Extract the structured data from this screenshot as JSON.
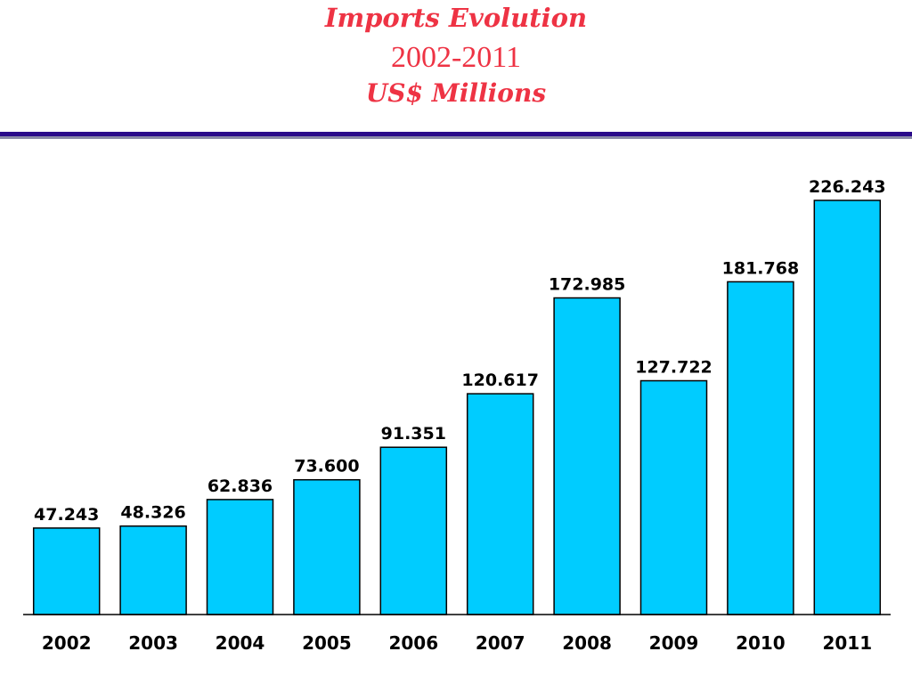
{
  "chart_data": {
    "type": "bar",
    "title": "Imports Evolution",
    "subtitle": "2002-2011",
    "unit_label": "US$ Millions",
    "categories": [
      "2002",
      "2003",
      "2004",
      "2005",
      "2006",
      "2007",
      "2008",
      "2009",
      "2010",
      "2011"
    ],
    "values": [
      47.243,
      48.326,
      62.836,
      73.6,
      91.351,
      120.617,
      172.985,
      127.722,
      181.768,
      226.243
    ],
    "value_labels": [
      "47.243",
      "48.326",
      "62.836",
      "73.600",
      "91.351",
      "120.617",
      "172.985",
      "127.722",
      "181.768",
      "226.243"
    ],
    "xlabel": "",
    "ylabel": "",
    "ylim": [
      0,
      226.243
    ],
    "grid": false,
    "legend": "none",
    "bar_color": "#00ccff",
    "title_color": "#ee3344",
    "divider_color": "#2a0a8a"
  }
}
